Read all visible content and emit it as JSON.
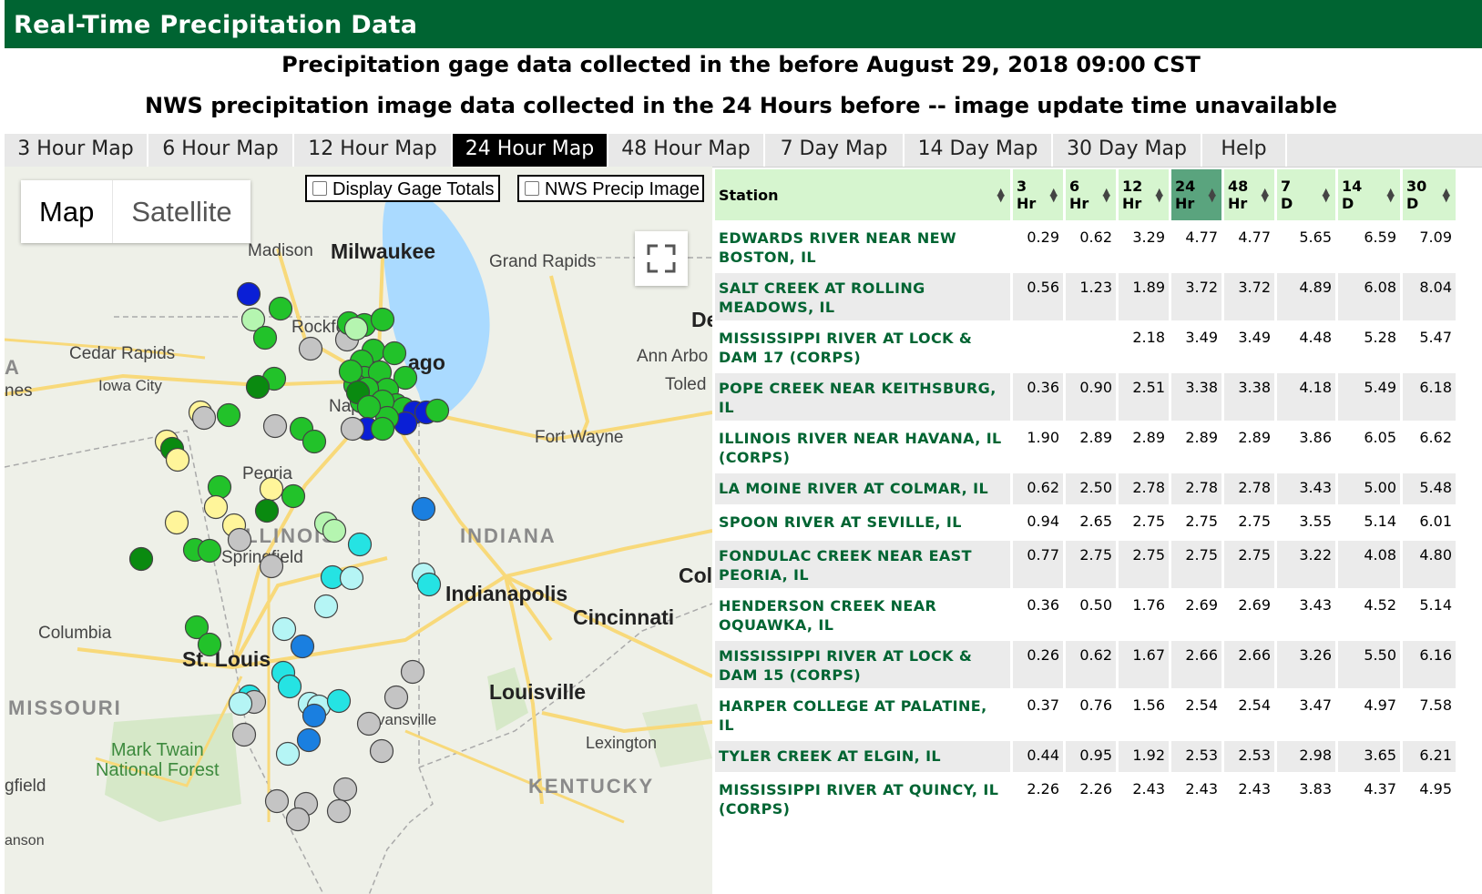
{
  "header": {
    "title": "Real-Time Precipitation Data",
    "subtitle1": "Precipitation gage data collected in the before August 29, 2018 09:00 CST",
    "subtitle2": "NWS precipitation image data collected in the 24 Hours before -- image update time unavailable"
  },
  "tabs": [
    "3 Hour Map",
    "6 Hour Map",
    "12 Hour Map",
    "24 Hour Map",
    "48 Hour Map",
    "7 Day Map",
    "14 Day Map",
    "30 Day Map",
    "Help"
  ],
  "active_tab": "24 Hour Map",
  "map": {
    "map_button": "Map",
    "satellite_button": "Satellite",
    "display_gage_totals": "Display Gage Totals",
    "nws_precip_image": "NWS Precip Image",
    "labels": {
      "madison": "Madison",
      "milwaukee": "Milwaukee",
      "grand_rapids": "Grand Rapids",
      "cedar_rapids": "Cedar Rapids",
      "iowa_city": "Iowa City",
      "rockford": "Rockford",
      "chicago": "ago",
      "ann_arbor": "Ann Arbo",
      "toledo": "Toled",
      "de": "De",
      "naperville": "Nap",
      "fort_wayne": "Fort Wayne",
      "peoria": "Peoria",
      "illinois": "ILLINOIS",
      "springfield": "Springfield",
      "indiana": "INDIANA",
      "indianapolis": "Indianapolis",
      "col": "Col",
      "cincinnati": "Cincinnati",
      "columbia": "Columbia",
      "st_louis": "St. Louis",
      "missouri": "MISSOURI",
      "louisville": "Louisville",
      "evansville": "vansville",
      "lexington": "Lexington",
      "mark_twain_1": "Mark Twain",
      "mark_twain_2": "National Forest",
      "kentucky": "KENTUCKY",
      "gfield": "gfield",
      "anson": "anson",
      "ia": "A",
      "nes": "nes"
    }
  },
  "table": {
    "headers": [
      {
        "l1": "Station",
        "l2": ""
      },
      {
        "l1": "3",
        "l2": "Hr"
      },
      {
        "l1": "6",
        "l2": "Hr"
      },
      {
        "l1": "12",
        "l2": "Hr"
      },
      {
        "l1": "24",
        "l2": "Hr"
      },
      {
        "l1": "48",
        "l2": "Hr"
      },
      {
        "l1": "7",
        "l2": "D"
      },
      {
        "l1": "14",
        "l2": "D"
      },
      {
        "l1": "30",
        "l2": "D"
      }
    ],
    "rows": [
      {
        "station": "EDWARDS RIVER NEAR NEW BOSTON, IL",
        "v": [
          "0.29",
          "0.62",
          "3.29",
          "4.77",
          "4.77",
          "5.65",
          "6.59",
          "7.09"
        ]
      },
      {
        "station": "SALT CREEK AT ROLLING MEADOWS, IL",
        "v": [
          "0.56",
          "1.23",
          "1.89",
          "3.72",
          "3.72",
          "4.89",
          "6.08",
          "8.04"
        ]
      },
      {
        "station": "MISSISSIPPI RIVER AT LOCK & DAM 17 (CORPS)",
        "v": [
          "",
          "",
          "2.18",
          "3.49",
          "3.49",
          "4.48",
          "5.28",
          "5.47"
        ]
      },
      {
        "station": "POPE CREEK NEAR KEITHSBURG, IL",
        "v": [
          "0.36",
          "0.90",
          "2.51",
          "3.38",
          "3.38",
          "4.18",
          "5.49",
          "6.18"
        ]
      },
      {
        "station": "ILLINOIS RIVER NEAR HAVANA, IL (CORPS)",
        "v": [
          "1.90",
          "2.89",
          "2.89",
          "2.89",
          "2.89",
          "3.86",
          "6.05",
          "6.62"
        ]
      },
      {
        "station": "LA MOINE RIVER AT COLMAR, IL",
        "v": [
          "0.62",
          "2.50",
          "2.78",
          "2.78",
          "2.78",
          "3.43",
          "5.00",
          "5.48"
        ]
      },
      {
        "station": "SPOON RIVER AT SEVILLE, IL",
        "v": [
          "0.94",
          "2.65",
          "2.75",
          "2.75",
          "2.75",
          "3.55",
          "5.14",
          "6.01"
        ]
      },
      {
        "station": "FONDULAC CREEK NEAR EAST PEORIA, IL",
        "v": [
          "0.77",
          "2.75",
          "2.75",
          "2.75",
          "2.75",
          "3.22",
          "4.08",
          "4.80"
        ]
      },
      {
        "station": "HENDERSON CREEK NEAR OQUAWKA, IL",
        "v": [
          "0.36",
          "0.50",
          "1.76",
          "2.69",
          "2.69",
          "3.43",
          "4.52",
          "5.14"
        ]
      },
      {
        "station": "MISSISSIPPI RIVER AT LOCK & DAM 15 (CORPS)",
        "v": [
          "0.26",
          "0.62",
          "1.67",
          "2.66",
          "2.66",
          "3.26",
          "5.50",
          "6.16"
        ]
      },
      {
        "station": "HARPER COLLEGE AT PALATINE, IL",
        "v": [
          "0.37",
          "0.76",
          "1.56",
          "2.54",
          "2.54",
          "3.47",
          "4.97",
          "7.58"
        ]
      },
      {
        "station": "TYLER CREEK AT ELGIN, IL",
        "v": [
          "0.44",
          "0.95",
          "1.92",
          "2.53",
          "2.53",
          "2.98",
          "3.65",
          "6.21"
        ]
      },
      {
        "station": "MISSISSIPPI RIVER AT QUINCY, IL (CORPS)",
        "v": [
          "2.26",
          "2.26",
          "2.43",
          "2.43",
          "2.43",
          "3.83",
          "4.37",
          "4.95"
        ]
      }
    ]
  },
  "colors": {
    "header_green": "#006432",
    "station_link": "#006432",
    "table_header": "#d6f5cf",
    "sorted_header": "#5aa47e",
    "gage_gray": "#c4c4c4",
    "gage_yellow": "#fff59a",
    "gage_light_green": "#b5f5b0",
    "gage_green": "#22c22a",
    "gage_dark_green": "#0a8a10",
    "gage_cyan": "#25e3e3",
    "gage_light_cyan": "#b5f5f5",
    "gage_blue": "#1a7fe0",
    "gage_dark_blue": "#0a1fd6"
  },
  "icons": {
    "fullscreen": "fullscreen-icon",
    "sort": "sort-arrows-icon",
    "checkbox": "checkbox-icon"
  }
}
